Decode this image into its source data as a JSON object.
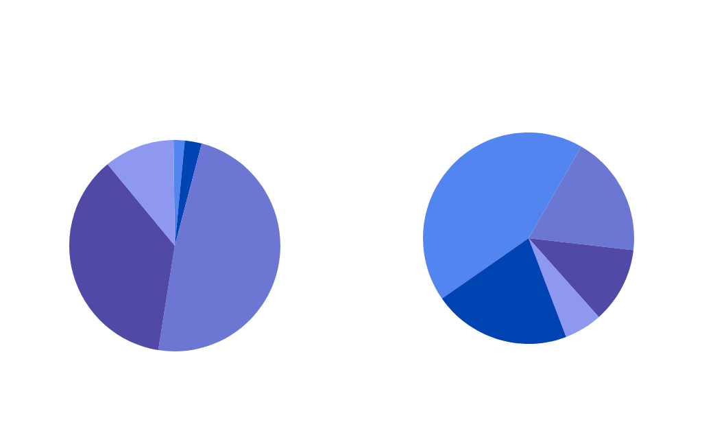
{
  "chart_data": [
    {
      "type": "pie",
      "categories": [
        null,
        null,
        null,
        null,
        null
      ],
      "values": [
        1.7,
        2.6,
        48.4,
        36.5,
        10.8
      ],
      "colors": [
        "#5285ef",
        "#0044b4",
        "#6c77d3",
        "#504aa6",
        "#8f98f0"
      ]
    },
    {
      "type": "pie",
      "categories": [
        null,
        null,
        null,
        null,
        null
      ],
      "values": [
        43.0,
        18.5,
        11.6,
        5.8,
        21.1
      ],
      "colors": [
        "#5285ef",
        "#6c77d3",
        "#504aa6",
        "#8f98f0",
        "#0044b4"
      ]
    }
  ]
}
